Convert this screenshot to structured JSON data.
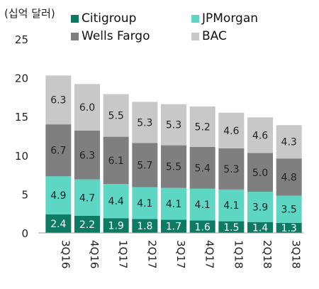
{
  "unit_label": "(십억 달러)",
  "chart_data": {
    "type": "bar",
    "stacked": true,
    "categories": [
      "3Q16",
      "4Q16",
      "1Q17",
      "2Q17",
      "3Q17",
      "4Q17",
      "1Q18",
      "2Q18",
      "3Q18"
    ],
    "series": [
      {
        "name": "Citigroup",
        "color": "#0d7a63",
        "values": [
          2.4,
          2.2,
          1.9,
          1.8,
          1.7,
          1.6,
          1.5,
          1.4,
          1.3
        ]
      },
      {
        "name": "JPMorgan",
        "color": "#5ed6c4",
        "values": [
          4.9,
          4.7,
          4.4,
          4.1,
          4.1,
          4.1,
          4.1,
          3.9,
          3.5
        ]
      },
      {
        "name": "Wells Fargo",
        "color": "#7f7f7f",
        "values": [
          6.7,
          6.3,
          6.1,
          5.7,
          5.5,
          5.4,
          5.3,
          5.0,
          4.8
        ]
      },
      {
        "name": "BAC",
        "color": "#c8c8c8",
        "values": [
          6.3,
          6.0,
          5.5,
          5.3,
          5.3,
          5.2,
          4.6,
          4.6,
          4.3
        ]
      }
    ],
    "yticks": [
      0,
      5,
      10,
      15,
      20,
      25
    ],
    "ylim": [
      0,
      25
    ],
    "grid": false,
    "legend_position": "top"
  }
}
